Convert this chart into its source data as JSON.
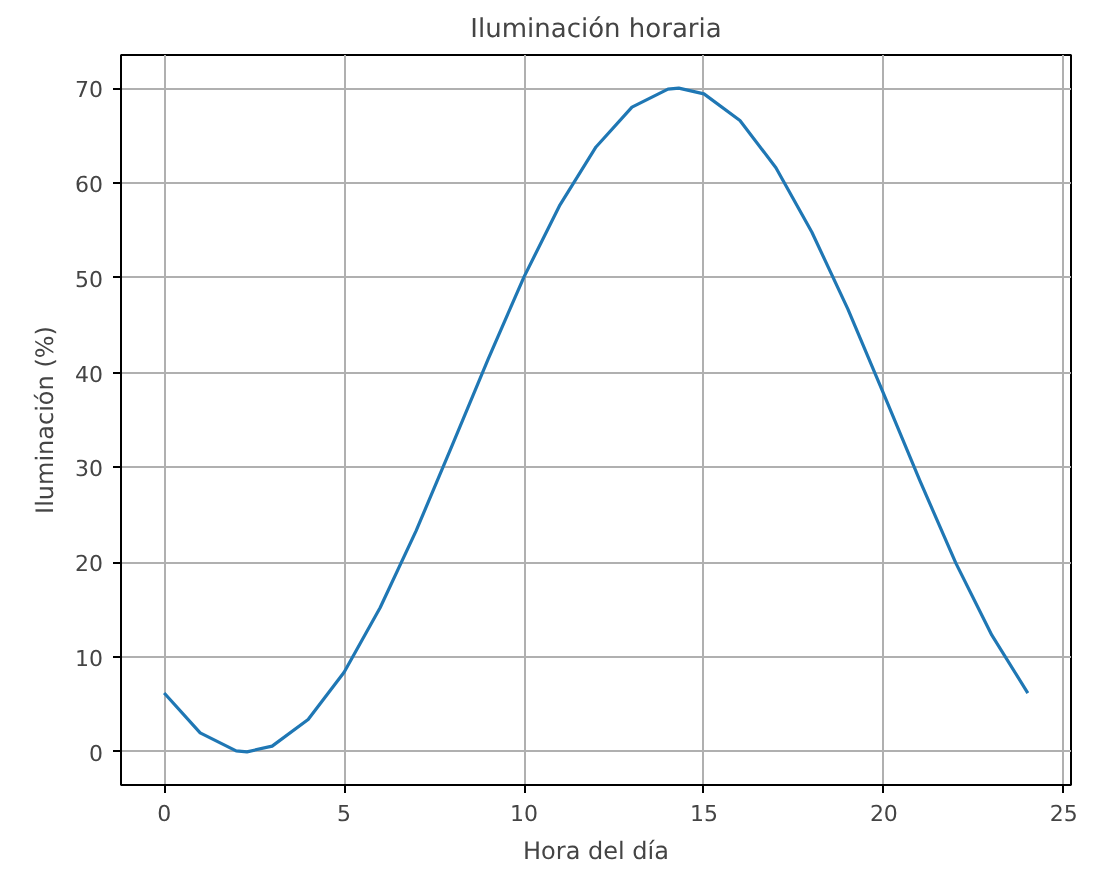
{
  "chart_data": {
    "type": "line",
    "title": "Iluminación horaria",
    "xlabel": "Hora del día",
    "ylabel": "Iluminación (%)",
    "x": [
      0,
      1,
      2,
      2.3,
      3,
      4,
      5,
      6,
      7,
      8,
      9,
      10,
      11,
      12,
      13,
      14,
      14.3,
      15,
      16,
      17,
      18,
      19,
      20,
      21,
      22,
      23,
      24
    ],
    "series": [
      {
        "color": "#1f77b4",
        "values": [
          6.2,
          2.0,
          0.1,
          0,
          0.6,
          3.4,
          8.4,
          15.2,
          23.3,
          32.3,
          41.4,
          50.1,
          57.7,
          63.8,
          68.0,
          69.9,
          70,
          69.4,
          66.6,
          61.6,
          54.8,
          46.7,
          37.7,
          28.6,
          19.9,
          12.3,
          6.2
        ]
      }
    ],
    "xlim": [
      -1.2,
      25.2
    ],
    "ylim": [
      -3.5,
      73.5
    ],
    "xticks": [
      0,
      5,
      10,
      15,
      20,
      25
    ],
    "yticks": [
      0,
      10,
      20,
      30,
      40,
      50,
      60,
      70
    ],
    "grid": true,
    "line_style": "solid"
  }
}
